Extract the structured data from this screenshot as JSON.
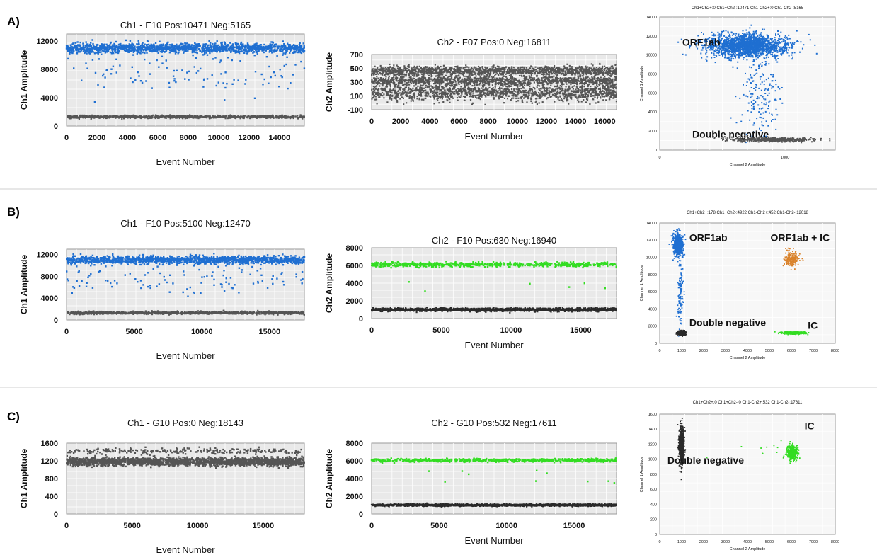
{
  "colors": {
    "blue": "#1f6fd1",
    "gray": "#555555",
    "dark": "#2a2a2a",
    "green": "#33dd22",
    "orange": "#d9822b"
  },
  "panels": [
    {
      "label": "A)"
    },
    {
      "label": "B)"
    },
    {
      "label": "C)"
    }
  ],
  "chart_data": [
    {
      "id": "A1",
      "row": 0,
      "col": 0,
      "type": "scatter",
      "title": "Ch1 - E10 Pos:10471 Neg:5165",
      "xlabel": "Event Number",
      "ylabel": "Ch1 Amplitude",
      "xlim": [
        0,
        15636
      ],
      "ylim": [
        0,
        13000
      ],
      "xticks": [
        0,
        2000,
        4000,
        6000,
        8000,
        10000,
        12000,
        14000
      ],
      "yticks": [
        0,
        4000,
        8000,
        12000
      ],
      "series": [
        {
          "color": "blue",
          "y_center": 11000,
          "y_spread": 700,
          "count": 1400,
          "size": 2.4
        },
        {
          "color": "blue",
          "y_center": 7500,
          "y_spread": 3000,
          "count": 110,
          "size": 2.4
        },
        {
          "color": "gray",
          "y_center": 1300,
          "y_spread": 200,
          "count": 900,
          "size": 2.2
        }
      ]
    },
    {
      "id": "A2",
      "row": 0,
      "col": 1,
      "type": "scatter",
      "title": "Ch2 - F07 Pos:0 Neg:16811",
      "xlabel": "Event Number",
      "ylabel": "Ch2 Amplitude",
      "xlim": [
        0,
        16811
      ],
      "ylim": [
        -100,
        700
      ],
      "xticks": [
        0,
        2000,
        4000,
        6000,
        8000,
        10000,
        12000,
        14000,
        16000
      ],
      "yticks": [
        -100,
        100,
        300,
        500,
        700
      ],
      "series": [
        {
          "color": "gray",
          "y_center": 460,
          "y_spread": 70,
          "count": 1400,
          "size": 2.2
        },
        {
          "color": "gray",
          "y_center": 320,
          "y_spread": 60,
          "count": 1100,
          "size": 2.2
        },
        {
          "color": "gray",
          "y_center": 150,
          "y_spread": 120,
          "count": 1400,
          "size": 2.2
        }
      ]
    },
    {
      "id": "A3",
      "row": 0,
      "col": 2,
      "type": "scatter",
      "title": "Ch1+Ch2+:0 Ch1+Ch2-:10471 Ch1-Ch2+:0 Ch1-Ch2-:5165",
      "xlabel": "Channel 2 Amplitude",
      "ylabel": "Channel 1 Amplitude",
      "xlim": [
        0,
        1400
      ],
      "ylim": [
        0,
        14000
      ],
      "xticks": [
        0,
        1000
      ],
      "yticks": [
        0,
        2000,
        4000,
        6000,
        8000,
        10000,
        12000,
        14000
      ],
      "annotations": [
        {
          "text": "ORF1ab",
          "x": 180,
          "y": 11000
        },
        {
          "text": "Double negative",
          "x": 260,
          "y": 1300
        }
      ],
      "series": [
        {
          "color": "blue",
          "cx": 700,
          "cy": 11000,
          "sx": 160,
          "sy": 600,
          "count": 1800,
          "size": 2.0
        },
        {
          "color": "blue",
          "cx": 800,
          "cy": 6000,
          "sx": 80,
          "sy": 2500,
          "count": 180,
          "size": 2.0
        },
        {
          "color": "gray",
          "cx": 900,
          "cy": 1100,
          "sx": 150,
          "sy": 100,
          "count": 500,
          "size": 2.0
        }
      ]
    },
    {
      "id": "B1",
      "row": 1,
      "col": 0,
      "type": "scatter",
      "title": "Ch1 - F10 Pos:5100 Neg:12470",
      "xlabel": "Event Number",
      "ylabel": "Ch1 Amplitude",
      "xlim": [
        0,
        17570
      ],
      "ylim": [
        0,
        13000
      ],
      "xticks": [
        0,
        5000,
        10000,
        15000
      ],
      "yticks": [
        0,
        4000,
        8000,
        12000
      ],
      "series": [
        {
          "color": "blue",
          "y_center": 11000,
          "y_spread": 700,
          "count": 1400,
          "size": 2.4
        },
        {
          "color": "blue",
          "y_center": 7500,
          "y_spread": 3000,
          "count": 120,
          "size": 2.4
        },
        {
          "color": "gray",
          "y_center": 1300,
          "y_spread": 250,
          "count": 1100,
          "size": 2.2
        }
      ]
    },
    {
      "id": "B2",
      "row": 1,
      "col": 1,
      "type": "scatter",
      "title": "Ch2 - F10 Pos:630 Neg:16940",
      "xlabel": "Event Number",
      "ylabel": "Ch2 Amplitude",
      "xlim": [
        0,
        17570
      ],
      "ylim": [
        0,
        8000
      ],
      "xticks": [
        0,
        5000,
        10000,
        15000
      ],
      "yticks": [
        0,
        2000,
        4000,
        6000,
        8000
      ],
      "series": [
        {
          "color": "green",
          "y_center": 6100,
          "y_spread": 250,
          "count": 630,
          "size": 2.4
        },
        {
          "color": "green",
          "y_center": 3600,
          "y_spread": 800,
          "count": 6,
          "size": 2.4
        },
        {
          "color": "dark",
          "y_center": 1000,
          "y_spread": 180,
          "count": 1500,
          "size": 2.2
        }
      ]
    },
    {
      "id": "B3",
      "row": 1,
      "col": 2,
      "type": "scatter",
      "title": "Ch1+Ch2+:178 Ch1+Ch2-:4922 Ch1-Ch2+:452 Ch1-Ch2-:12018",
      "xlabel": "Channel 2 Amplitude",
      "ylabel": "Channel 1 Amplitude",
      "xlim": [
        0,
        8000
      ],
      "ylim": [
        0,
        14000
      ],
      "xticks": [
        0,
        1000,
        2000,
        3000,
        4000,
        5000,
        6000,
        7000,
        8000
      ],
      "yticks": [
        0,
        2000,
        4000,
        6000,
        8000,
        10000,
        12000,
        14000
      ],
      "annotations": [
        {
          "text": "ORF1ab",
          "x": 1350,
          "y": 11900
        },
        {
          "text": "ORF1ab + IC",
          "x": 5050,
          "y": 11900
        },
        {
          "text": "Double negative",
          "x": 1350,
          "y": 2000
        },
        {
          "text": "IC",
          "x": 6750,
          "y": 1700
        }
      ],
      "series": [
        {
          "color": "blue",
          "cx": 850,
          "cy": 11500,
          "sx": 100,
          "sy": 600,
          "count": 900,
          "size": 1.8
        },
        {
          "color": "blue",
          "cx": 950,
          "cy": 6000,
          "sx": 60,
          "sy": 2200,
          "count": 120,
          "size": 1.8
        },
        {
          "color": "orange",
          "cx": 6000,
          "cy": 9800,
          "sx": 170,
          "sy": 500,
          "count": 178,
          "size": 1.8
        },
        {
          "color": "dark",
          "cx": 1000,
          "cy": 1200,
          "sx": 80,
          "sy": 120,
          "count": 500,
          "size": 1.8
        },
        {
          "color": "green",
          "cx": 6100,
          "cy": 1200,
          "sx": 250,
          "sy": 60,
          "count": 452,
          "size": 1.8
        }
      ]
    },
    {
      "id": "C1",
      "row": 2,
      "col": 0,
      "type": "scatter",
      "title": "Ch1 - G10 Pos:0 Neg:18143",
      "xlabel": "Event Number",
      "ylabel": "Ch1 Amplitude",
      "xlim": [
        0,
        18143
      ],
      "ylim": [
        0,
        1600
      ],
      "xticks": [
        0,
        5000,
        10000,
        15000
      ],
      "yticks": [
        0,
        400,
        800,
        1200,
        1600
      ],
      "series": [
        {
          "color": "gray",
          "y_center": 1180,
          "y_spread": 90,
          "count": 2200,
          "size": 2.4
        },
        {
          "color": "gray",
          "y_center": 1420,
          "y_spread": 60,
          "count": 250,
          "size": 2.4
        }
      ]
    },
    {
      "id": "C2",
      "row": 2,
      "col": 1,
      "type": "scatter",
      "title": "Ch2 - G10 Pos:532 Neg:17611",
      "xlabel": "Event Number",
      "ylabel": "Ch2 Amplitude",
      "xlim": [
        0,
        18143
      ],
      "ylim": [
        0,
        8000
      ],
      "xticks": [
        0,
        5000,
        10000,
        15000
      ],
      "yticks": [
        0,
        2000,
        4000,
        6000,
        8000
      ],
      "series": [
        {
          "color": "green",
          "y_center": 6050,
          "y_spread": 200,
          "count": 532,
          "size": 2.4
        },
        {
          "color": "green",
          "y_center": 4300,
          "y_spread": 1400,
          "count": 10,
          "size": 2.4
        },
        {
          "color": "dark",
          "y_center": 1000,
          "y_spread": 120,
          "count": 1600,
          "size": 2.2
        }
      ]
    },
    {
      "id": "C3",
      "row": 2,
      "col": 2,
      "type": "scatter",
      "title": "Ch1+Ch2+:0 Ch1+Ch2-:0 Ch1-Ch2+:532 Ch1-Ch2-:17611",
      "xlabel": "Channel 2 Amplitude",
      "ylabel": "Channel 1 Amplitude",
      "xlim": [
        0,
        8000
      ],
      "ylim": [
        0,
        1600
      ],
      "xticks": [
        0,
        1000,
        2000,
        3000,
        4000,
        5000,
        6000,
        7000,
        8000
      ],
      "yticks": [
        0,
        200,
        400,
        600,
        800,
        1000,
        1200,
        1400,
        1600
      ],
      "annotations": [
        {
          "text": "IC",
          "x": 6600,
          "y": 1400
        },
        {
          "text": "Double negative",
          "x": 350,
          "y": 940
        }
      ],
      "series": [
        {
          "color": "dark",
          "cx": 1000,
          "cy": 1170,
          "sx": 50,
          "sy": 110,
          "count": 1100,
          "size": 1.8
        },
        {
          "color": "green",
          "cx": 6050,
          "cy": 1090,
          "sx": 110,
          "sy": 45,
          "count": 450,
          "size": 1.8
        },
        {
          "color": "green",
          "cx": 4500,
          "cy": 1150,
          "sx": 1300,
          "sy": 80,
          "count": 14,
          "size": 1.8
        }
      ]
    }
  ]
}
